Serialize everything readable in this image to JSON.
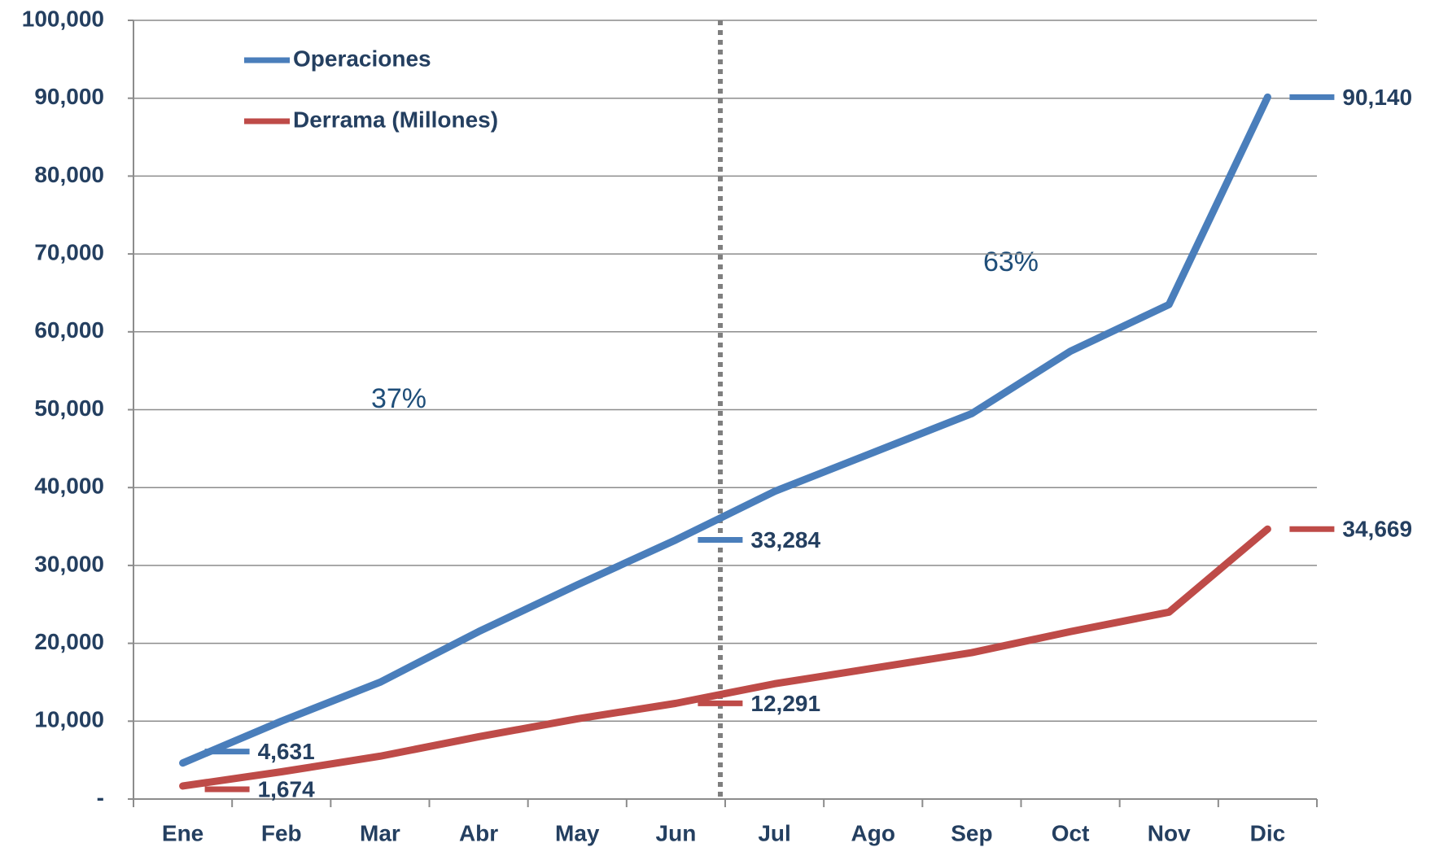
{
  "chart_data": {
    "type": "line",
    "categories": [
      "Ene",
      "Feb",
      "Mar",
      "Abr",
      "May",
      "Jun",
      "Jul",
      "Ago",
      "Sep",
      "Oct",
      "Nov",
      "Dic"
    ],
    "series": [
      {
        "name": "Operaciones",
        "color": "#4a7ebb",
        "values": [
          4631,
          10000,
          15000,
          21500,
          27500,
          33284,
          39500,
          44500,
          49500,
          57500,
          63500,
          90140
        ],
        "value_labels": [
          "4,631",
          null,
          null,
          null,
          null,
          "33,284",
          null,
          null,
          null,
          null,
          null,
          "90,140"
        ]
      },
      {
        "name": "Derrama (Millones)",
        "color": "#be4b48",
        "values": [
          1674,
          3500,
          5500,
          8000,
          10300,
          12291,
          14800,
          16800,
          18800,
          21500,
          24000,
          34669
        ],
        "value_labels": [
          "1,674",
          null,
          null,
          null,
          null,
          "12,291",
          null,
          null,
          null,
          null,
          null,
          "34,669"
        ]
      }
    ],
    "ylim": [
      0,
      100000
    ],
    "yticks": [
      {
        "value": 0,
        "label": "-"
      },
      {
        "value": 10000,
        "label": "10,000"
      },
      {
        "value": 20000,
        "label": "20,000"
      },
      {
        "value": 30000,
        "label": "30,000"
      },
      {
        "value": 40000,
        "label": "40,000"
      },
      {
        "value": 50000,
        "label": "50,000"
      },
      {
        "value": 60000,
        "label": "60,000"
      },
      {
        "value": 70000,
        "label": "70,000"
      },
      {
        "value": 80000,
        "label": "80,000"
      },
      {
        "value": 90000,
        "label": "90,000"
      },
      {
        "value": 100000,
        "label": "100,000"
      }
    ],
    "grid": true,
    "legend": "upper left",
    "annotations": [
      "37%",
      "63%"
    ]
  }
}
